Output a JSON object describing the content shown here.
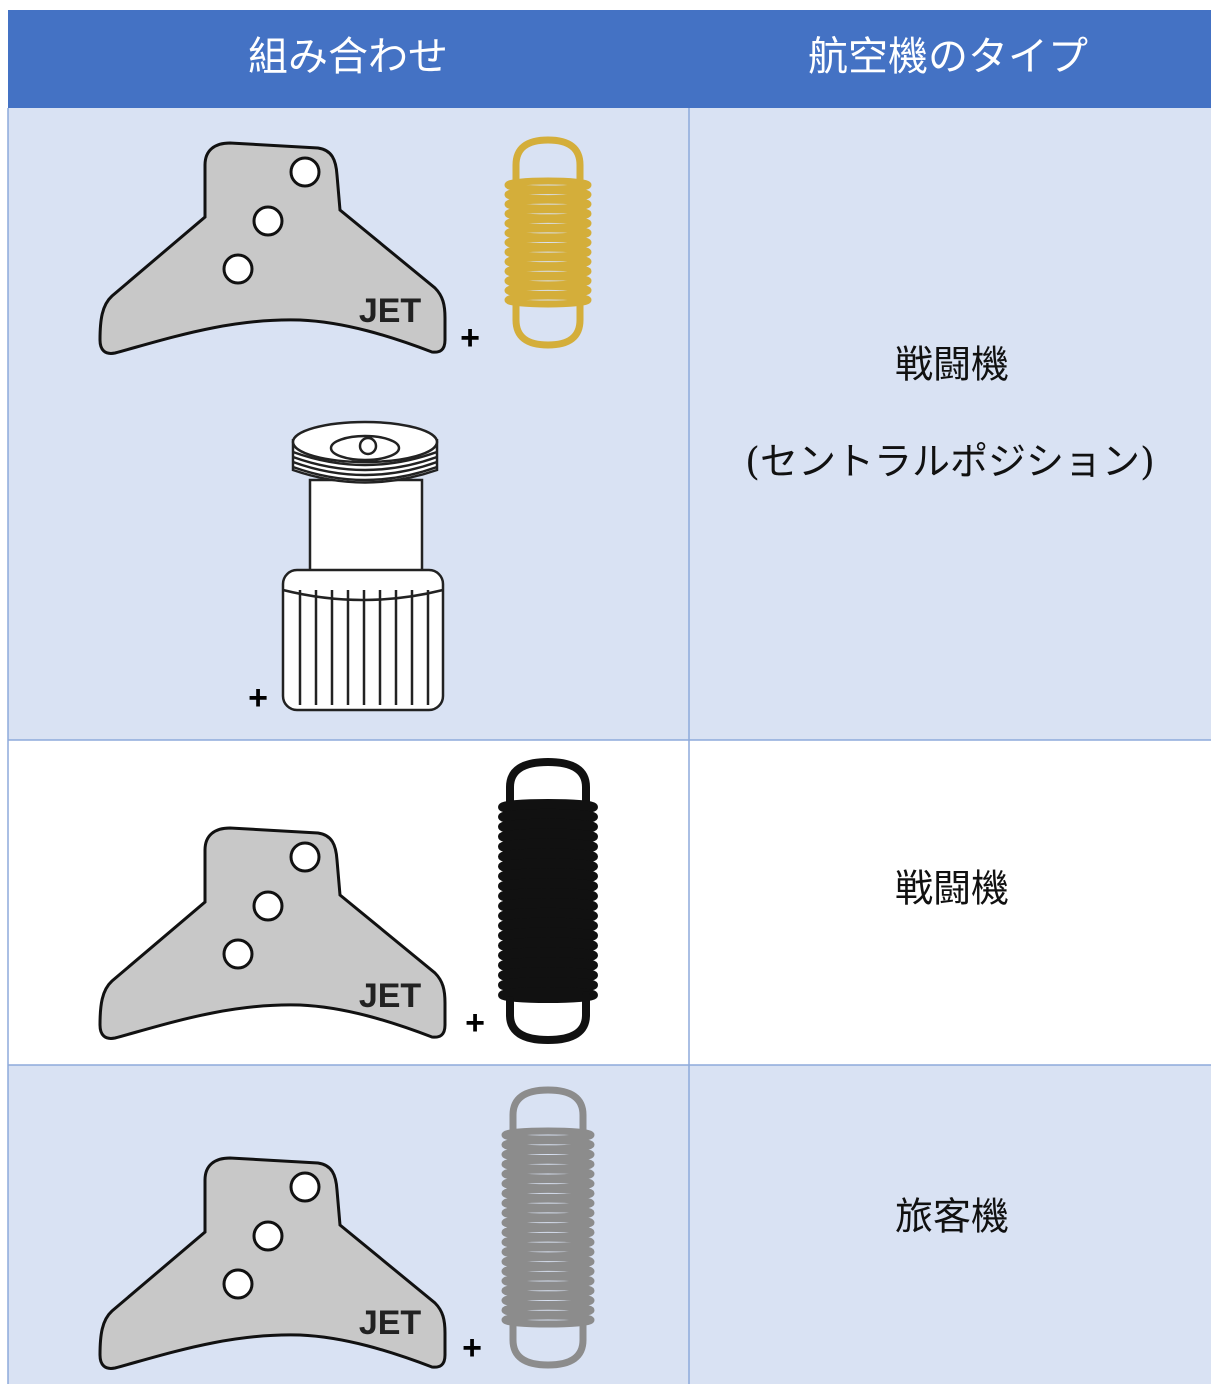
{
  "table": {
    "header": [
      "組み合わせ",
      "航空機のタイプ"
    ],
    "rows": [
      {
        "combination": {
          "plate_label": "JET",
          "plus": "+",
          "cartridge_plus": "+"
        },
        "type": [
          "戦闘機",
          "(セントラルポジション)"
        ]
      },
      {
        "combination": {
          "plate_label": "JET",
          "plus": "+"
        },
        "type": [
          "戦闘機"
        ]
      },
      {
        "combination": {
          "plate_label": "JET",
          "plus": "+"
        },
        "type": [
          "旅客機"
        ]
      }
    ]
  }
}
